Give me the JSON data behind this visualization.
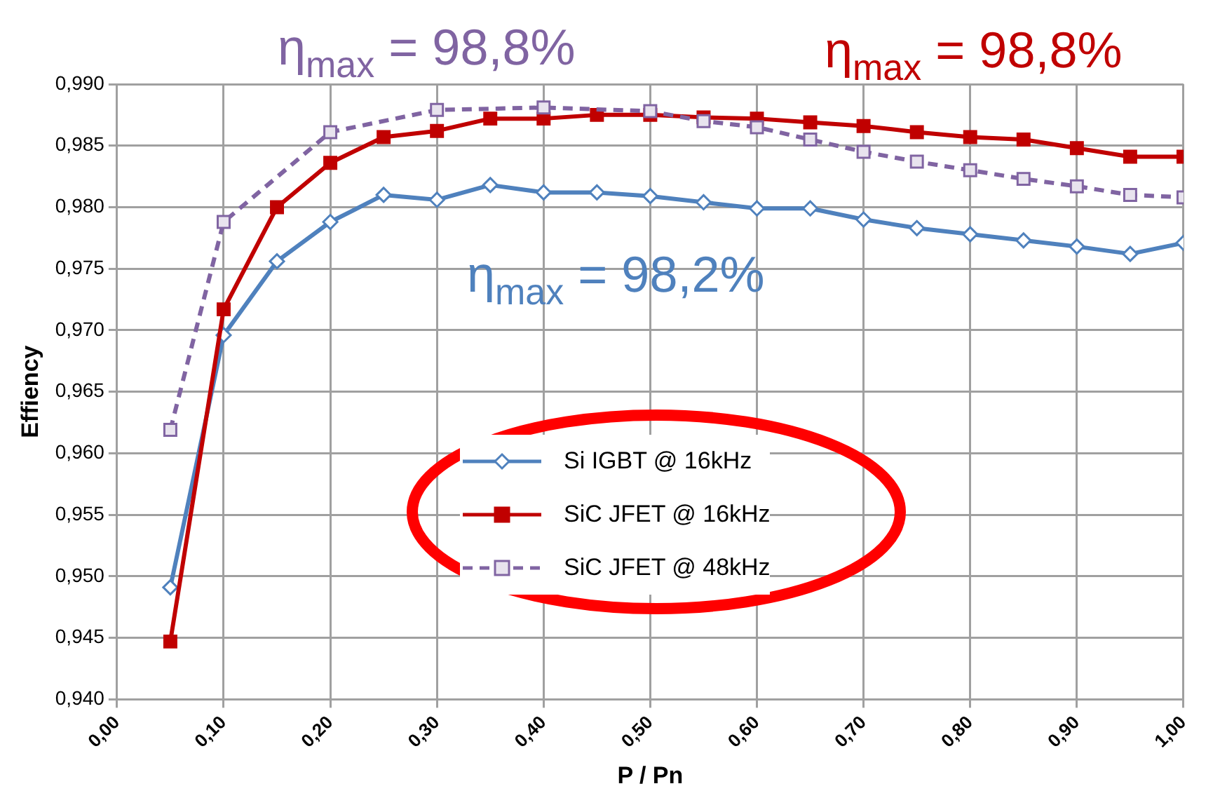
{
  "chart_data": {
    "type": "line",
    "xlabel": "P / Pn",
    "ylabel": "Effiency",
    "x": [
      0.05,
      0.1,
      0.15,
      0.2,
      0.25,
      0.3,
      0.35,
      0.4,
      0.45,
      0.5,
      0.55,
      0.6,
      0.65,
      0.7,
      0.75,
      0.8,
      0.85,
      0.9,
      0.95,
      1.0
    ],
    "series": [
      {
        "name": "Si IGBT @ 16kHz",
        "color": "#4f81bd",
        "marker": "diamond",
        "line_style": "solid",
        "values": [
          0.9491,
          0.9696,
          0.9756,
          0.9788,
          0.981,
          0.9806,
          0.9818,
          0.9812,
          0.9812,
          0.9809,
          0.9804,
          0.9799,
          0.9799,
          0.979,
          0.9783,
          0.9778,
          0.9773,
          0.9768,
          0.9762,
          0.9771
        ]
      },
      {
        "name": "SiC JFET @ 16kHz",
        "color": "#c00000",
        "marker": "square",
        "line_style": "solid",
        "values": [
          0.9447,
          0.9717,
          0.98,
          0.9836,
          0.9857,
          0.9862,
          0.9872,
          0.9872,
          0.9875,
          0.9875,
          0.9873,
          0.9872,
          0.9869,
          0.9866,
          0.9861,
          0.9857,
          0.9855,
          0.9848,
          0.9841,
          0.9841
        ]
      },
      {
        "name": "SiC JFET @ 48kHz",
        "color": "#8064a2",
        "marker": "square",
        "line_style": "dashed",
        "x": [
          0.05,
          0.1,
          0.2,
          0.3,
          0.4,
          0.5,
          0.55,
          0.6,
          0.65,
          0.7,
          0.75,
          0.8,
          0.85,
          0.9,
          0.95,
          1.0
        ],
        "values": [
          0.9619,
          0.9788,
          0.9861,
          0.9879,
          0.9881,
          0.9878,
          0.987,
          0.9865,
          0.9855,
          0.9845,
          0.9837,
          0.983,
          0.9823,
          0.9817,
          0.981,
          0.9808
        ]
      }
    ],
    "xlim": [
      0,
      1
    ],
    "xticks": [
      {
        "value": 0,
        "label": "0,00"
      },
      {
        "value": 0.1,
        "label": "0,10"
      },
      {
        "value": 0.2,
        "label": "0,20"
      },
      {
        "value": 0.3,
        "label": "0,30"
      },
      {
        "value": 0.4,
        "label": "0,40"
      },
      {
        "value": 0.5,
        "label": "0,50"
      },
      {
        "value": 0.6,
        "label": "0,60"
      },
      {
        "value": 0.7,
        "label": "0,70"
      },
      {
        "value": 0.8,
        "label": "0,80"
      },
      {
        "value": 0.9,
        "label": "0,90"
      },
      {
        "value": 1,
        "label": "1,00"
      }
    ],
    "ylim": [
      0.94,
      0.99
    ],
    "yticks": [
      {
        "value": 0.94,
        "label": "0,940"
      },
      {
        "value": 0.945,
        "label": "0,945"
      },
      {
        "value": 0.95,
        "label": "0,950"
      },
      {
        "value": 0.955,
        "label": "0,955"
      },
      {
        "value": 0.96,
        "label": "0,960"
      },
      {
        "value": 0.965,
        "label": "0,965"
      },
      {
        "value": 0.97,
        "label": "0,970"
      },
      {
        "value": 0.975,
        "label": "0,975"
      },
      {
        "value": 0.98,
        "label": "0,980"
      },
      {
        "value": 0.985,
        "label": "0,985"
      },
      {
        "value": 0.99,
        "label": "0,990"
      }
    ],
    "annotations": [
      "η$_{max}$ = 98,8%",
      "η$_{max}$ = 98,8%",
      "η$_{max}$ = 98,2%"
    ],
    "grid": true,
    "legend": "bottom"
  }
}
